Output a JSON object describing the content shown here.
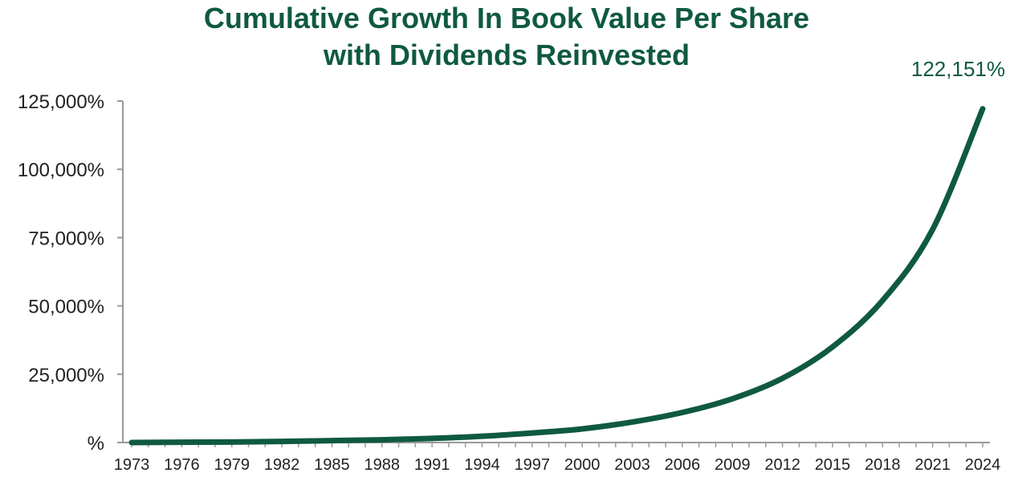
{
  "colors": {
    "series": "#0f5a3f",
    "axis": "#9a9a9a",
    "text": "#222222"
  },
  "chart_data": {
    "type": "line",
    "title_line1": "Cumulative Growth In Book Value Per Share",
    "title_line2": "with Dividends Reinvested",
    "xlabel": "",
    "ylabel": "",
    "x_ticks": [
      "1973",
      "1976",
      "1979",
      "1982",
      "1985",
      "1988",
      "1991",
      "1994",
      "1997",
      "2000",
      "2003",
      "2006",
      "2009",
      "2012",
      "2015",
      "2018",
      "2021",
      "2024"
    ],
    "y_ticks": [
      "125,000%",
      "100,000%",
      "75,000%",
      "50,000%",
      "25,000%",
      "%"
    ],
    "y_tick_values": [
      125000,
      100000,
      75000,
      50000,
      25000,
      0
    ],
    "ylim": [
      0,
      125000
    ],
    "xlim": [
      1973,
      2024
    ],
    "grid": false,
    "end_label": "122,151%",
    "series": [
      {
        "x": [
          1973,
          1976,
          1979,
          1982,
          1985,
          1988,
          1991,
          1994,
          1997,
          2000,
          2003,
          2006,
          2009,
          2012,
          2015,
          2018,
          2021,
          2024
        ],
        "y": [
          0,
          100,
          200,
          400,
          700,
          1000,
          1500,
          2300,
          3500,
          5000,
          7500,
          11000,
          16000,
          23500,
          35000,
          52000,
          78000,
          122151
        ]
      }
    ]
  }
}
